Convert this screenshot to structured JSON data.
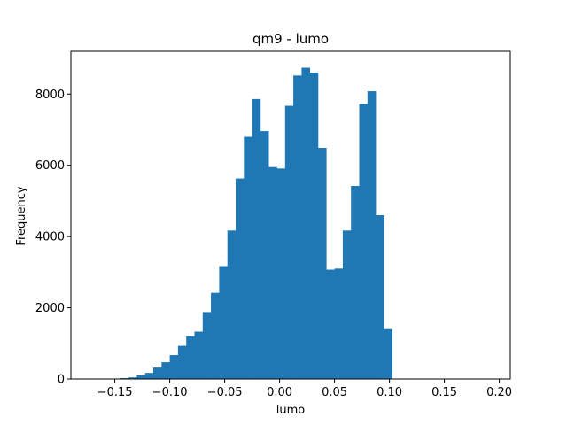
{
  "chart_data": {
    "type": "bar",
    "subtype": "histogram",
    "title": "qm9 - lumo",
    "xlabel": "lumo",
    "ylabel": "Frequency",
    "xlim": [
      -0.19,
      0.21
    ],
    "ylim": [
      0,
      9200
    ],
    "grid": false,
    "bar_color": "#1f77b4",
    "x_ticks": [
      -0.15,
      -0.1,
      -0.05,
      0.0,
      0.05,
      0.1,
      0.15,
      0.2
    ],
    "x_tick_labels": [
      "−0.15",
      "−0.10",
      "−0.05",
      "0.00",
      "0.05",
      "0.10",
      "0.15",
      "0.20"
    ],
    "y_ticks": [
      0,
      2000,
      4000,
      6000,
      8000
    ],
    "y_tick_labels": [
      "0",
      "2000",
      "4000",
      "6000",
      "8000"
    ],
    "bin_edges": [
      -0.145,
      -0.1375,
      -0.13,
      -0.1225,
      -0.115,
      -0.1075,
      -0.1,
      -0.0925,
      -0.085,
      -0.0775,
      -0.07,
      -0.0625,
      -0.055,
      -0.0475,
      -0.04,
      -0.0325,
      -0.025,
      -0.0175,
      -0.01,
      -0.0025,
      0.005,
      0.0125,
      0.02,
      0.0275,
      0.035,
      0.0425,
      0.05,
      0.0575,
      0.065,
      0.0725,
      0.08,
      0.0875,
      0.095,
      0.1025
    ],
    "values": [
      25,
      45,
      100,
      170,
      320,
      470,
      670,
      930,
      1200,
      1330,
      1880,
      2420,
      3170,
      4170,
      5630,
      6800,
      7860,
      6960,
      5950,
      5910,
      7670,
      8520,
      8740,
      8600,
      6490,
      3070,
      3100,
      4170,
      5420,
      7720,
      8080,
      4600,
      1400,
      170
    ]
  }
}
